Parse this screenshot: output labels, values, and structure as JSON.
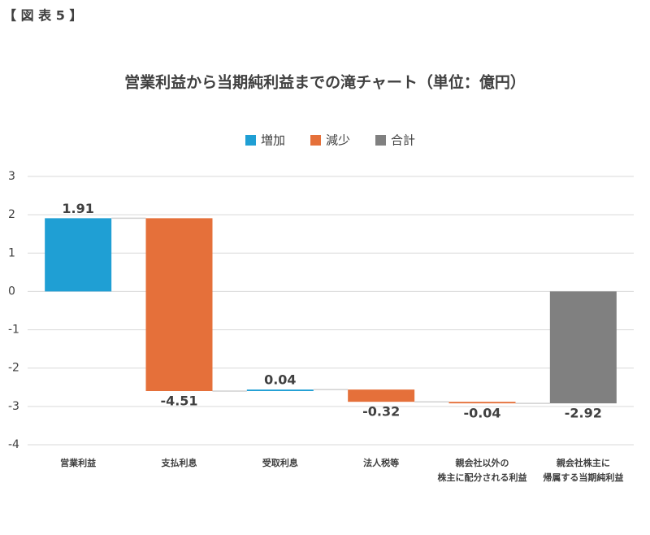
{
  "header": "【 図 表 5 】",
  "chart_data": {
    "type": "waterfall",
    "title": "営業利益から当期純利益までの滝チャート（単位：億円）",
    "categories": [
      [
        "営業利益"
      ],
      [
        "支払利息"
      ],
      [
        "受取利息"
      ],
      [
        "法人税等"
      ],
      [
        "親会社以外の",
        "株主に配分される利益"
      ],
      [
        "親会社株主に",
        "帰属する当期純利益"
      ]
    ],
    "values": [
      1.91,
      -4.51,
      0.04,
      -0.32,
      -0.04,
      -2.92
    ],
    "legend": [
      {
        "name": "増加",
        "color": "#1f9fd4"
      },
      {
        "name": "減少",
        "color": "#e5703a"
      },
      {
        "name": "合計",
        "color": "#808080"
      }
    ],
    "ylim": [
      -4,
      3
    ],
    "yticks": [
      -4,
      -3,
      -2,
      -1,
      0,
      1,
      2,
      3
    ],
    "grid": true
  }
}
